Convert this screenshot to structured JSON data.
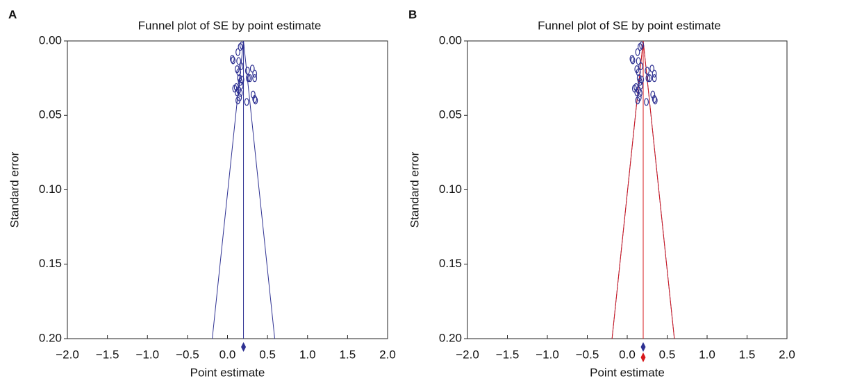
{
  "chart_data": [
    {
      "type": "funnel",
      "panel_label": "A",
      "title": "Funnel plot of SE by point estimate",
      "x_label": "Point estimate",
      "y_label": "Standard error",
      "xlim": [
        -2,
        2
      ],
      "ylim": [
        0,
        0.2
      ],
      "y_inverted": true,
      "xticks": [
        {
          "value": -2,
          "label": "−2.0"
        },
        {
          "value": -1.5,
          "label": "−1.5"
        },
        {
          "value": -1,
          "label": "−1.0"
        },
        {
          "value": -0.5,
          "label": "−0.5"
        },
        {
          "value": 0,
          "label": "0.0"
        },
        {
          "value": 0.5,
          "label": "0.5"
        },
        {
          "value": 1,
          "label": "1.0"
        },
        {
          "value": 1.5,
          "label": "1.5"
        },
        {
          "value": 2,
          "label": "2.0"
        }
      ],
      "yticks": [
        {
          "value": 0,
          "label": "0.00"
        },
        {
          "value": 0.05,
          "label": "0.05"
        },
        {
          "value": 0.1,
          "label": "0.10"
        },
        {
          "value": 0.15,
          "label": "0.15"
        },
        {
          "value": 0.2,
          "label": "0.20"
        }
      ],
      "studies": {
        "color": "#2e3192",
        "x": [
          0.18,
          0.16,
          0.06,
          0.07,
          0.13,
          0.14,
          0.17,
          0.12,
          0.14,
          0.15,
          0.25,
          0.31,
          0.34,
          0.34,
          0.26,
          0.28,
          0.16,
          0.18,
          0.11,
          0.09,
          0.14,
          0.16,
          0.12,
          0.17,
          0.32,
          0.35,
          0.34,
          0.24,
          0.13,
          0.15
        ],
        "y": [
          0.003,
          0.004,
          0.012,
          0.013,
          0.0075,
          0.0135,
          0.017,
          0.019,
          0.021,
          0.025,
          0.02,
          0.0186,
          0.022,
          0.025,
          0.025,
          0.025,
          0.0275,
          0.026,
          0.031,
          0.032,
          0.033,
          0.035,
          0.0345,
          0.03,
          0.036,
          0.04,
          0.039,
          0.041,
          0.04,
          0.038
        ]
      },
      "estimates": [
        {
          "value": 0.2,
          "limits": [
            -0.19,
            0.59
          ],
          "color": "#2e3192"
        }
      ]
    },
    {
      "type": "funnel",
      "panel_label": "B",
      "title": "Funnel plot of SE by point estimate",
      "x_label": "Point estimate",
      "y_label": "Standard error",
      "xlim": [
        -2,
        2
      ],
      "ylim": [
        0,
        0.2
      ],
      "y_inverted": true,
      "xticks": [
        {
          "value": -2,
          "label": "−2.0"
        },
        {
          "value": -1.5,
          "label": "−1.5"
        },
        {
          "value": -1,
          "label": "−1.0"
        },
        {
          "value": -0.5,
          "label": "−0.5"
        },
        {
          "value": 0,
          "label": "0.0"
        },
        {
          "value": 0.5,
          "label": "0.5"
        },
        {
          "value": 1,
          "label": "1.0"
        },
        {
          "value": 1.5,
          "label": "1.5"
        },
        {
          "value": 2,
          "label": "2.0"
        }
      ],
      "yticks": [
        {
          "value": 0,
          "label": "0.00"
        },
        {
          "value": 0.05,
          "label": "0.05"
        },
        {
          "value": 0.1,
          "label": "0.10"
        },
        {
          "value": 0.15,
          "label": "0.15"
        },
        {
          "value": 0.2,
          "label": "0.20"
        }
      ],
      "studies": {
        "color": "#2e3192",
        "x": [
          0.18,
          0.16,
          0.06,
          0.07,
          0.13,
          0.14,
          0.17,
          0.12,
          0.14,
          0.15,
          0.25,
          0.31,
          0.34,
          0.34,
          0.26,
          0.28,
          0.16,
          0.18,
          0.11,
          0.09,
          0.14,
          0.16,
          0.12,
          0.17,
          0.32,
          0.35,
          0.34,
          0.24,
          0.13,
          0.15
        ],
        "y": [
          0.003,
          0.004,
          0.012,
          0.013,
          0.0075,
          0.0135,
          0.017,
          0.019,
          0.021,
          0.025,
          0.02,
          0.0186,
          0.022,
          0.025,
          0.025,
          0.025,
          0.0275,
          0.026,
          0.031,
          0.032,
          0.033,
          0.035,
          0.0345,
          0.03,
          0.036,
          0.04,
          0.039,
          0.041,
          0.04,
          0.038
        ]
      },
      "estimates": [
        {
          "value": 0.2,
          "limits": [
            -0.19,
            0.59
          ],
          "color": "#2e3192"
        },
        {
          "value": 0.2,
          "limits": [
            -0.19,
            0.59
          ],
          "color": "#d7191c"
        }
      ]
    }
  ]
}
